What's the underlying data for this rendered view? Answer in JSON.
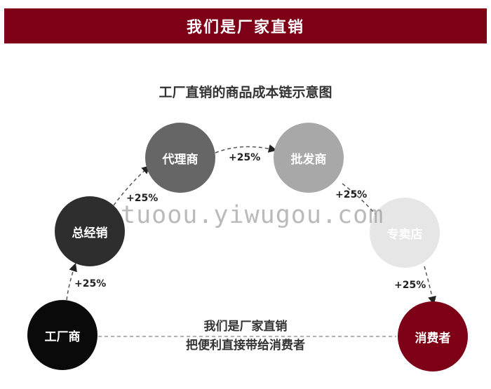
{
  "banner": {
    "title": "我们是厂家直销",
    "color": "#7d0016"
  },
  "diagram": {
    "title": "工厂直销的商品成本链示意图",
    "nodes": [
      {
        "label": "工厂商",
        "color": "#0a0a0a"
      },
      {
        "label": "总经销",
        "color": "#2e2e2e"
      },
      {
        "label": "代理商",
        "color": "#666666"
      },
      {
        "label": "批发商",
        "color": "#a8a8a8"
      },
      {
        "label": "专卖店",
        "color": "#e6e6e6"
      },
      {
        "label": "消费者",
        "color": "#7d0016"
      }
    ],
    "markups": [
      "+25%",
      "+25%",
      "+25%",
      "+25%",
      "+25%"
    ],
    "note_line1": "我们是厂家直销",
    "note_line2": "把便利直接带给消费者"
  },
  "watermark": "tuoou.yiwugou.com"
}
